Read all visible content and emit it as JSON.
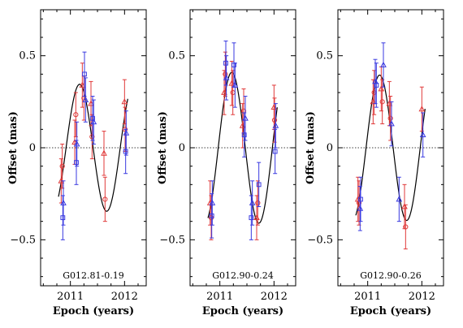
{
  "chart_data": [
    {
      "type": "scatter",
      "title": "G012.81-0.19",
      "xlabel": "Epoch (years)",
      "ylabel": "Offset (mas)",
      "xlim": [
        2010.45,
        2012.4
      ],
      "ylim": [
        -0.75,
        0.75
      ],
      "xticks": [
        2011,
        2012
      ],
      "yticks": [
        -0.5,
        0,
        0.5
      ],
      "ytick_labels": [
        "−0.5",
        "0",
        "0.5"
      ],
      "xtick_labels": [
        "2011",
        "2012"
      ],
      "model": {
        "A": 0.345,
        "period": 1.0,
        "phase_zero": 2010.92
      },
      "colors": {
        "red": "#e03a3a",
        "blue": "#3a3ae0"
      },
      "series": [
        {
          "color": "red",
          "marker": "triangle",
          "x": [
            2010.83,
            2011.08,
            2011.22,
            2011.38,
            2011.62,
            2012.0
          ],
          "y": [
            -0.18,
            0.03,
            0.34,
            0.24,
            -0.03,
            0.25
          ],
          "err": [
            0.12,
            0.12,
            0.12,
            0.12,
            0.12,
            0.12
          ]
        },
        {
          "color": "red",
          "marker": "circle",
          "x": [
            2010.85,
            2011.1,
            2011.25,
            2011.4,
            2011.64,
            2012.01
          ],
          "y": [
            -0.1,
            0.18,
            0.27,
            0.06,
            -0.28,
            0.1
          ],
          "err": [
            0.12,
            0.12,
            0.12,
            0.12,
            0.12,
            0.12
          ]
        },
        {
          "color": "blue",
          "marker": "square",
          "x": [
            2010.86,
            2011.11,
            2011.26,
            2011.41,
            2012.02
          ],
          "y": [
            -0.38,
            -0.08,
            0.4,
            0.16,
            -0.02
          ],
          "err": [
            0.12,
            0.12,
            0.12,
            0.12,
            0.12
          ]
        },
        {
          "color": "blue",
          "marker": "triangle",
          "x": [
            2010.87,
            2011.12,
            2011.28,
            2011.43,
            2012.03
          ],
          "y": [
            -0.3,
            0.02,
            0.26,
            0.14,
            0.08
          ],
          "err": [
            0.12,
            0.12,
            0.12,
            0.12,
            0.12
          ]
        }
      ]
    },
    {
      "type": "scatter",
      "title": "G012.90-0.24",
      "xlabel": "Epoch (years)",
      "ylabel": "Offset (mas)",
      "xlim": [
        2010.45,
        2012.4
      ],
      "ylim": [
        -0.75,
        0.75
      ],
      "xticks": [
        2011,
        2012
      ],
      "yticks": [
        -0.5,
        0,
        0.5
      ],
      "ytick_labels": [
        "−0.5",
        "0",
        "0.5"
      ],
      "xtick_labels": [
        "2011",
        "2012"
      ],
      "model": {
        "A": 0.41,
        "period": 1.0,
        "phase_zero": 2010.97
      },
      "colors": {
        "red": "#e03a3a",
        "blue": "#3a3ae0"
      },
      "series": [
        {
          "color": "red",
          "marker": "triangle",
          "x": [
            2010.82,
            2011.08,
            2011.22,
            2011.42,
            2011.68,
            2012.0
          ],
          "y": [
            -0.3,
            0.3,
            0.35,
            0.12,
            -0.38,
            0.22
          ],
          "err": [
            0.12,
            0.12,
            0.12,
            0.12,
            0.12,
            0.12
          ]
        },
        {
          "color": "red",
          "marker": "circle",
          "x": [
            2010.84,
            2011.1,
            2011.24,
            2011.44,
            2011.7,
            2012.01
          ],
          "y": [
            -0.38,
            0.4,
            0.3,
            0.2,
            -0.3,
            0.15
          ],
          "err": [
            0.12,
            0.12,
            0.12,
            0.12,
            0.12,
            0.12
          ]
        },
        {
          "color": "blue",
          "marker": "square",
          "x": [
            2010.85,
            2011.11,
            2011.26,
            2011.45,
            2011.58,
            2011.72,
            2012.02
          ],
          "y": [
            -0.37,
            0.46,
            0.45,
            0.07,
            -0.38,
            -0.2,
            -0.02
          ],
          "err": [
            0.12,
            0.12,
            0.12,
            0.12,
            0.12,
            0.12,
            0.12
          ]
        },
        {
          "color": "blue",
          "marker": "triangle",
          "x": [
            2010.86,
            2011.12,
            2011.28,
            2011.47,
            2011.6,
            2012.03
          ],
          "y": [
            -0.3,
            0.38,
            0.34,
            0.16,
            -0.3,
            0.12
          ],
          "err": [
            0.12,
            0.12,
            0.12,
            0.12,
            0.12,
            0.12
          ]
        }
      ]
    },
    {
      "type": "scatter",
      "title": "G012.90-0.26",
      "xlabel": "Epoch (years)",
      "ylabel": "Offset (mas)",
      "xlim": [
        2010.45,
        2012.4
      ],
      "ylim": [
        -0.75,
        0.75
      ],
      "xticks": [
        2011,
        2012
      ],
      "yticks": [
        -0.5,
        0,
        0.5
      ],
      "ytick_labels": [
        "−0.5",
        "0",
        "0.5"
      ],
      "xtick_labels": [
        "2011",
        "2012"
      ],
      "model": {
        "A": 0.395,
        "period": 1.0,
        "phase_zero": 2010.97
      },
      "colors": {
        "red": "#e03a3a",
        "blue": "#3a3ae0"
      },
      "series": [
        {
          "color": "red",
          "marker": "triangle",
          "x": [
            2010.82,
            2011.1,
            2011.25,
            2011.4,
            2011.68,
            2012.0
          ],
          "y": [
            -0.28,
            0.25,
            0.32,
            0.24,
            -0.32,
            0.21
          ],
          "err": [
            0.12,
            0.12,
            0.12,
            0.12,
            0.12,
            0.12
          ]
        },
        {
          "color": "red",
          "marker": "circle",
          "x": [
            2010.84,
            2011.12,
            2011.27,
            2011.42,
            2011.7
          ],
          "y": [
            -0.3,
            0.3,
            0.25,
            0.16,
            -0.43
          ],
          "err": [
            0.12,
            0.12,
            0.12,
            0.12,
            0.12
          ]
        },
        {
          "color": "blue",
          "marker": "triangle",
          "x": [
            2010.86,
            2011.14,
            2011.29,
            2011.44,
            2011.58,
            2012.02
          ],
          "y": [
            -0.33,
            0.36,
            0.45,
            0.13,
            -0.28,
            0.07
          ],
          "err": [
            0.12,
            0.12,
            0.12,
            0.12,
            0.12,
            0.12
          ]
        },
        {
          "color": "blue",
          "marker": "square",
          "x": [
            2010.87,
            2011.16
          ],
          "y": [
            -0.28,
            0.34
          ],
          "err": [
            0.12,
            0.12
          ]
        }
      ]
    }
  ]
}
